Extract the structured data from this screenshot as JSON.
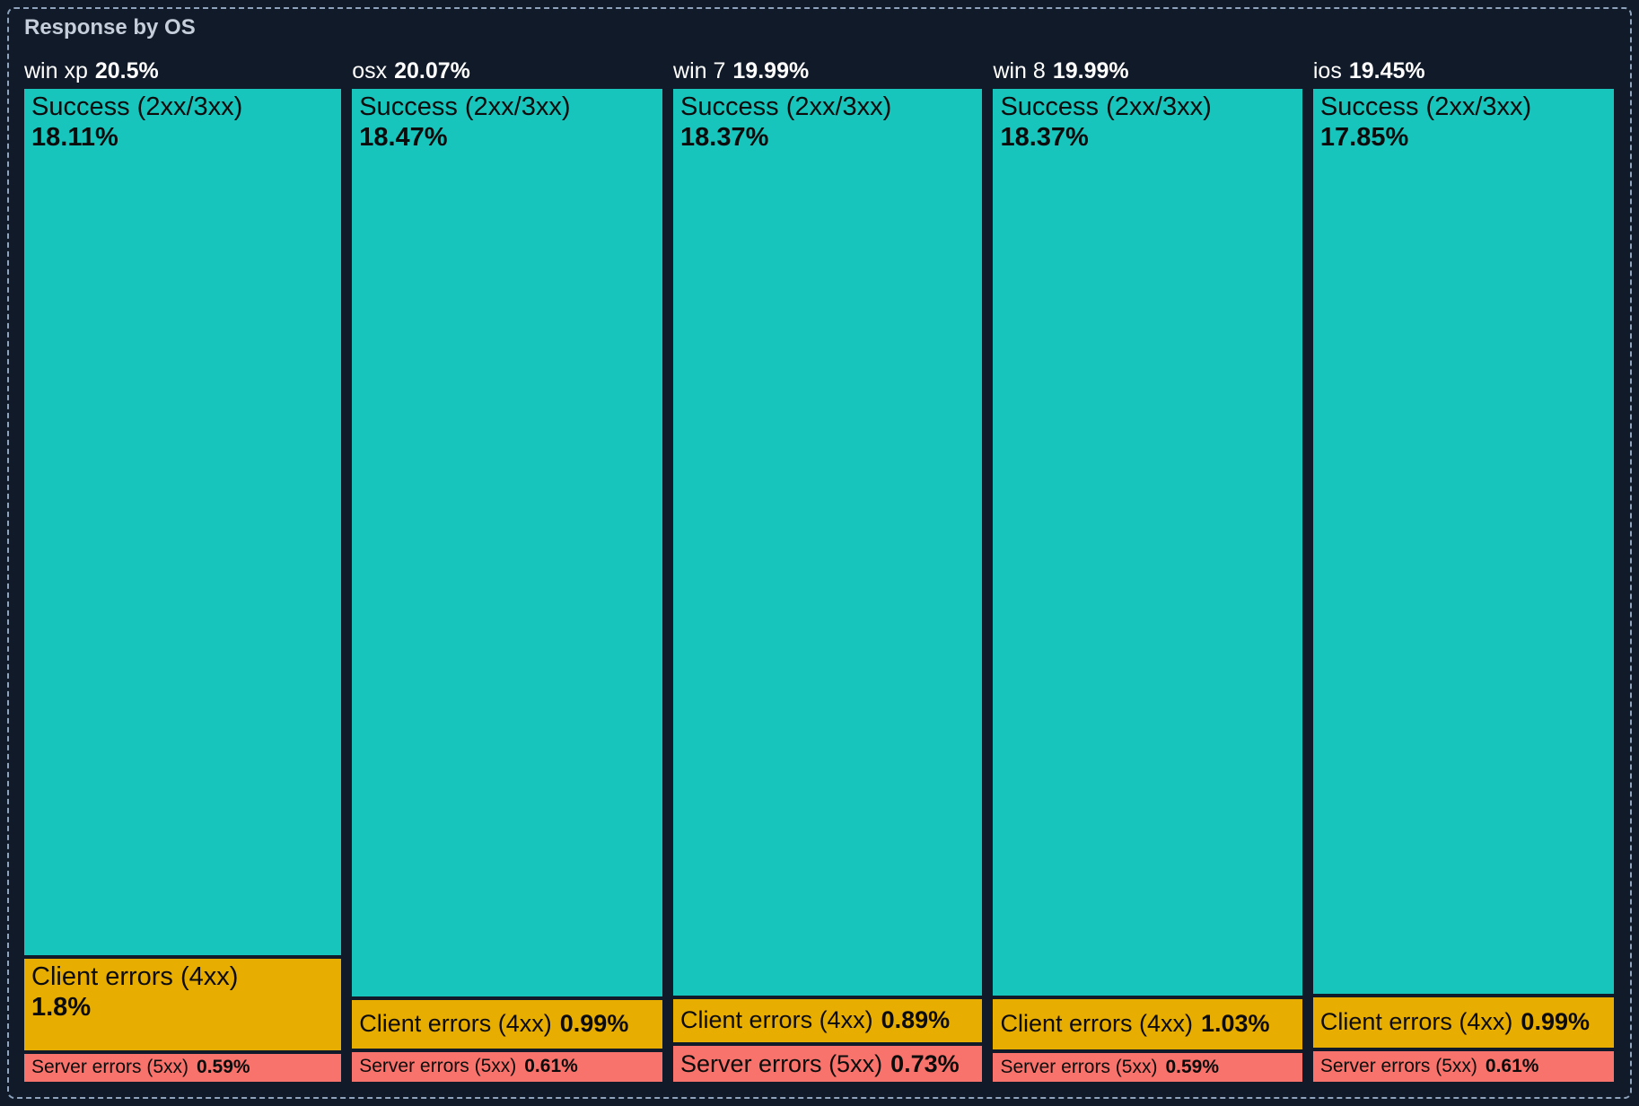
{
  "panel": {
    "title": "Response by OS"
  },
  "chart_data": {
    "type": "treemap",
    "title": "Response by OS",
    "layout": "columns sliced by OS share, each column stacked by response class, label shows name and percent of total",
    "legend": "none",
    "colors": {
      "background": "#101a28",
      "border_dash": "#8fa3bd",
      "title_text": "#c5ceda",
      "header_text": "#ffffff",
      "tile_text": "#0c0c0c",
      "success": "#18c5bd",
      "client_errors": "#e8ad01",
      "server_errors": "#f8736c"
    },
    "columns": [
      {
        "label": "win xp",
        "share": "20.5%",
        "value": 20.5,
        "segments": [
          {
            "label": "Success (2xx/3xx)",
            "display": "18.11%",
            "value": 18.11
          },
          {
            "label": "Client errors (4xx)",
            "display": "1.8%",
            "value": 1.8
          },
          {
            "label": "Server errors (5xx)",
            "display": "0.59%",
            "value": 0.59
          }
        ]
      },
      {
        "label": "osx",
        "share": "20.07%",
        "value": 20.07,
        "segments": [
          {
            "label": "Success (2xx/3xx)",
            "display": "18.47%",
            "value": 18.47
          },
          {
            "label": "Client errors (4xx)",
            "display": "0.99%",
            "value": 0.99
          },
          {
            "label": "Server errors (5xx)",
            "display": "0.61%",
            "value": 0.61
          }
        ]
      },
      {
        "label": "win 7",
        "share": "19.99%",
        "value": 19.99,
        "segments": [
          {
            "label": "Success (2xx/3xx)",
            "display": "18.37%",
            "value": 18.37
          },
          {
            "label": "Client errors (4xx)",
            "display": "0.89%",
            "value": 0.89
          },
          {
            "label": "Server errors (5xx)",
            "display": "0.73%",
            "value": 0.73
          }
        ]
      },
      {
        "label": "win 8",
        "share": "19.99%",
        "value": 19.99,
        "segments": [
          {
            "label": "Success (2xx/3xx)",
            "display": "18.37%",
            "value": 18.37
          },
          {
            "label": "Client errors (4xx)",
            "display": "1.03%",
            "value": 1.03
          },
          {
            "label": "Server errors (5xx)",
            "display": "0.59%",
            "value": 0.59
          }
        ]
      },
      {
        "label": "ios",
        "share": "19.45%",
        "value": 19.45,
        "segments": [
          {
            "label": "Success (2xx/3xx)",
            "display": "17.85%",
            "value": 17.85
          },
          {
            "label": "Client errors (4xx)",
            "display": "0.99%",
            "value": 0.99
          },
          {
            "label": "Server errors (5xx)",
            "display": "0.61%",
            "value": 0.61
          }
        ]
      }
    ]
  }
}
